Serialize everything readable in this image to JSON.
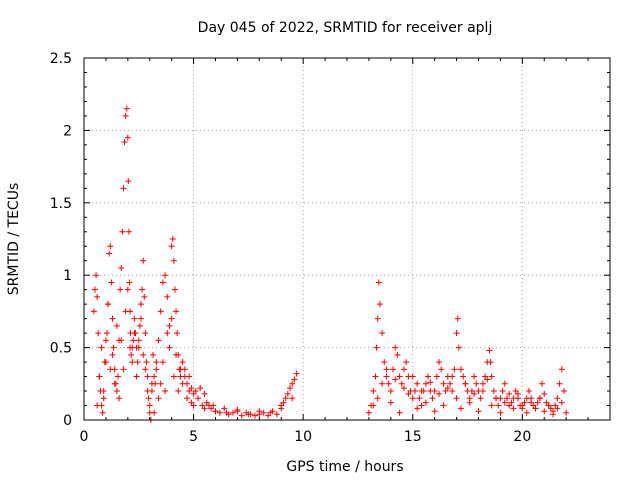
{
  "chart_data": {
    "type": "scatter",
    "title": "Day 045 of 2022, SRMTID for receiver aplj",
    "xlabel": "GPS time / hours",
    "ylabel": "SRMTID / TECUs",
    "xlim": [
      0,
      24
    ],
    "ylim": [
      0,
      2.5
    ],
    "xticks": [
      0,
      5,
      10,
      15,
      20
    ],
    "xtick_labels": [
      "0",
      "5",
      "10",
      "15",
      "20"
    ],
    "yticks": [
      0,
      0.5,
      1,
      1.5,
      2,
      2.5
    ],
    "ytick_labels": [
      "0",
      "0.5",
      "1",
      "1.5",
      "2",
      "2.5"
    ],
    "grid": true,
    "marker": "+",
    "color": "#ff0000",
    "series": [
      {
        "name": "SRMTID",
        "x": [
          0.45,
          0.5,
          0.55,
          0.6,
          0.65,
          0.7,
          0.75,
          0.8,
          0.85,
          0.9,
          0.95,
          1.0,
          1.05,
          1.1,
          1.15,
          1.2,
          1.25,
          1.3,
          1.35,
          1.4,
          1.45,
          1.5,
          1.55,
          1.6,
          1.65,
          1.7,
          1.75,
          1.8,
          1.85,
          1.9,
          1.95,
          2.0,
          2.02,
          2.05,
          2.08,
          2.1,
          2.12,
          2.15,
          2.2,
          2.25,
          2.3,
          2.35,
          2.4,
          2.45,
          2.5,
          2.55,
          2.6,
          2.65,
          2.7,
          2.75,
          2.8,
          2.85,
          2.9,
          2.95,
          3.0,
          3.05,
          3.1,
          3.15,
          3.2,
          3.25,
          3.3,
          3.4,
          3.5,
          3.6,
          3.7,
          3.8,
          3.9,
          4.0,
          4.05,
          4.1,
          4.15,
          4.2,
          4.25,
          4.3,
          4.35,
          4.4,
          4.5,
          4.6,
          4.7,
          4.8,
          4.9,
          5.0,
          5.1,
          5.2,
          5.3,
          5.4,
          5.5,
          5.6,
          5.7,
          5.8,
          5.9,
          6.0,
          6.2,
          6.4,
          6.6,
          6.8,
          7.0,
          7.2,
          7.4,
          7.6,
          7.8,
          8.0,
          8.2,
          8.4,
          8.6,
          8.8,
          9.0,
          9.1,
          9.2,
          9.3,
          9.4,
          9.5,
          9.6,
          9.7,
          0.6,
          0.7,
          0.8,
          0.9,
          1.0,
          1.1,
          1.2,
          1.3,
          1.4,
          1.5,
          1.6,
          1.7,
          1.8,
          1.9,
          2.0,
          2.1,
          2.2,
          2.3,
          2.4,
          2.5,
          2.6,
          2.7,
          2.8,
          2.9,
          3.0,
          3.1,
          3.2,
          3.3,
          3.4,
          3.5,
          3.6,
          3.7,
          3.8,
          3.9,
          4.0,
          4.1,
          4.2,
          4.3,
          4.4,
          4.5,
          4.6,
          4.7,
          4.8,
          4.9,
          5.0,
          5.5,
          6.0,
          6.5,
          7.0,
          7.5,
          8.0,
          8.5,
          9.0,
          9.5,
          13.0,
          13.1,
          13.2,
          13.3,
          13.35,
          13.4,
          13.45,
          13.5,
          13.6,
          13.7,
          13.8,
          13.9,
          14.0,
          14.1,
          14.2,
          14.3,
          14.4,
          14.5,
          14.6,
          14.7,
          14.8,
          14.9,
          15.0,
          15.1,
          15.2,
          15.3,
          15.4,
          15.5,
          15.6,
          15.7,
          15.8,
          15.9,
          16.0,
          16.1,
          16.2,
          16.3,
          16.4,
          16.5,
          16.6,
          16.7,
          16.8,
          16.9,
          17.0,
          17.05,
          17.1,
          17.2,
          17.3,
          17.4,
          17.5,
          17.6,
          17.7,
          17.8,
          17.9,
          18.0,
          18.1,
          18.2,
          18.3,
          18.4,
          18.5,
          18.55,
          18.6,
          18.7,
          18.8,
          18.9,
          19.0,
          19.1,
          19.2,
          19.3,
          19.4,
          19.5,
          19.6,
          19.7,
          19.8,
          19.9,
          20.0,
          20.1,
          20.2,
          20.3,
          20.4,
          20.5,
          20.6,
          20.7,
          20.8,
          20.9,
          21.0,
          21.1,
          21.2,
          21.3,
          21.4,
          21.5,
          21.6,
          21.7,
          21.8,
          21.9,
          22.0,
          13.2,
          13.4,
          13.6,
          13.8,
          14.0,
          14.2,
          14.4,
          14.6,
          14.8,
          15.0,
          15.2,
          15.4,
          15.6,
          15.8,
          16.0,
          16.2,
          16.4,
          16.6,
          16.8,
          17.0,
          17.2,
          17.4,
          17.6,
          17.8,
          18.0,
          18.2,
          18.4,
          18.6,
          18.8,
          19.0,
          19.2,
          19.4,
          19.6,
          19.8,
          20.0,
          20.2,
          20.4,
          20.6,
          20.8,
          21.0,
          21.2,
          21.4,
          21.6,
          21.8
        ],
        "y": [
          0.75,
          0.9,
          1.0,
          0.85,
          0.6,
          0.3,
          0.2,
          0.1,
          0.05,
          0.15,
          0.4,
          0.55,
          0.6,
          0.8,
          1.15,
          1.2,
          0.95,
          0.7,
          0.5,
          0.35,
          0.25,
          0.2,
          0.3,
          0.55,
          0.9,
          1.05,
          1.3,
          1.6,
          1.92,
          2.1,
          2.15,
          1.95,
          1.65,
          1.3,
          0.95,
          0.75,
          0.6,
          0.45,
          0.5,
          0.55,
          0.7,
          0.6,
          0.5,
          0.4,
          0.55,
          0.65,
          0.8,
          0.9,
          1.1,
          0.85,
          0.6,
          0.4,
          0.3,
          0.15,
          0.05,
          0.0,
          0.2,
          0.45,
          0.3,
          0.25,
          0.4,
          0.55,
          0.75,
          0.95,
          1.0,
          0.85,
          0.65,
          1.2,
          1.25,
          1.1,
          0.9,
          0.75,
          0.6,
          0.45,
          0.35,
          0.3,
          0.4,
          0.35,
          0.25,
          0.3,
          0.22,
          0.18,
          0.2,
          0.15,
          0.22,
          0.1,
          0.18,
          0.12,
          0.1,
          0.08,
          0.1,
          0.06,
          0.05,
          0.08,
          0.04,
          0.05,
          0.06,
          0.03,
          0.05,
          0.04,
          0.03,
          0.04,
          0.05,
          0.03,
          0.06,
          0.04,
          0.08,
          0.12,
          0.15,
          0.18,
          0.22,
          0.25,
          0.28,
          0.32,
          0.1,
          0.3,
          0.5,
          0.2,
          0.4,
          0.8,
          0.35,
          0.45,
          0.25,
          0.65,
          0.15,
          0.55,
          0.35,
          0.75,
          0.9,
          0.5,
          0.4,
          0.6,
          0.3,
          0.5,
          0.7,
          0.45,
          0.35,
          0.2,
          0.1,
          0.25,
          0.05,
          0.35,
          0.15,
          0.25,
          0.4,
          0.2,
          0.6,
          0.5,
          0.7,
          0.3,
          0.45,
          0.2,
          0.35,
          0.25,
          0.3,
          0.15,
          0.2,
          0.12,
          0.1,
          0.08,
          0.06,
          0.05,
          0.07,
          0.04,
          0.06,
          0.05,
          0.1,
          0.15,
          0.05,
          0.1,
          0.2,
          0.3,
          0.5,
          0.7,
          0.95,
          0.8,
          0.6,
          0.4,
          0.3,
          0.25,
          0.2,
          0.35,
          0.5,
          0.45,
          0.3,
          0.25,
          0.35,
          0.4,
          0.3,
          0.2,
          0.15,
          0.2,
          0.25,
          0.15,
          0.1,
          0.2,
          0.25,
          0.3,
          0.2,
          0.15,
          0.2,
          0.3,
          0.4,
          0.35,
          0.25,
          0.2,
          0.3,
          0.25,
          0.2,
          0.35,
          0.6,
          0.7,
          0.5,
          0.35,
          0.3,
          0.25,
          0.2,
          0.15,
          0.2,
          0.3,
          0.25,
          0.2,
          0.15,
          0.25,
          0.3,
          0.4,
          0.48,
          0.4,
          0.3,
          0.2,
          0.15,
          0.1,
          0.15,
          0.2,
          0.25,
          0.15,
          0.1,
          0.12,
          0.15,
          0.2,
          0.18,
          0.1,
          0.08,
          0.12,
          0.15,
          0.2,
          0.15,
          0.1,
          0.08,
          0.12,
          0.15,
          0.25,
          0.18,
          0.12,
          0.1,
          0.08,
          0.06,
          0.1,
          0.15,
          0.25,
          0.35,
          0.2,
          0.05,
          0.1,
          0.15,
          0.25,
          0.35,
          0.12,
          0.28,
          0.05,
          0.22,
          0.18,
          0.3,
          0.08,
          0.2,
          0.12,
          0.26,
          0.06,
          0.18,
          0.1,
          0.22,
          0.3,
          0.15,
          0.08,
          0.25,
          0.12,
          0.18,
          0.06,
          0.2,
          0.28,
          0.1,
          0.15,
          0.05,
          0.12,
          0.18,
          0.08,
          0.15,
          0.1,
          0.05,
          0.12,
          0.08,
          0.15,
          0.06,
          0.1,
          0.04,
          0.08,
          0.12
        ]
      }
    ]
  }
}
